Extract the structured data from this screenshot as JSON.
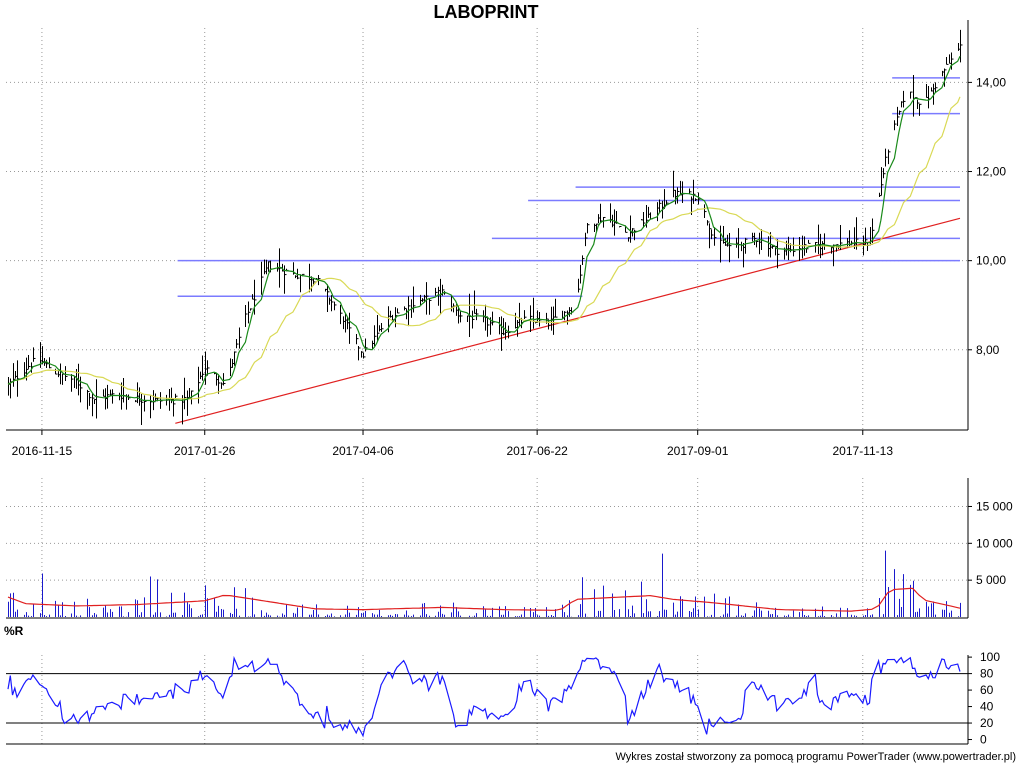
{
  "header": {
    "title": "LABOPRINT"
  },
  "footer": {
    "credit": "Wykres został stworzony za pomocą programu PowerTrader (www.powertrader.pl)"
  },
  "colors": {
    "sma_short": "#1a8a1a",
    "sma_long": "#d9d955",
    "trendline": "#e02020",
    "hlines": "#7b7bff",
    "volume_bars": "#1a1acc",
    "volume_avg": "#e02020",
    "wr_line": "#1a1aff",
    "grid": "#999999"
  },
  "chart_data": [
    {
      "type": "candlestick",
      "name": "price",
      "y_ticks": [
        "8,00",
        "10,00",
        "12,00",
        "14,00"
      ],
      "y_tick_values": [
        8,
        10,
        12,
        14
      ],
      "ylim": [
        6.2,
        15.4
      ],
      "x_date_labels": [
        "2016-11-15",
        "2017-01-26",
        "2017-04-06",
        "2017-06-22",
        "2017-09-01",
        "2017-11-13"
      ],
      "horizontal_levels": [
        {
          "from": "2017-01-14",
          "to": "2017-12-26",
          "value": 10.0
        },
        {
          "from": "2017-01-14",
          "to": "2017-07-12",
          "value": 9.2
        },
        {
          "from": "2017-06-02",
          "to": "2017-12-26",
          "value": 10.5
        },
        {
          "from": "2017-06-18",
          "to": "2017-12-26",
          "value": 11.35
        },
        {
          "from": "2017-07-09",
          "to": "2017-12-26",
          "value": 11.65
        },
        {
          "from": "2017-11-26",
          "to": "2017-12-26",
          "value": 13.3
        },
        {
          "from": "2017-11-26",
          "to": "2017-12-26",
          "value": 14.1
        }
      ],
      "trendline": {
        "from_date": "2017-01-13",
        "from_value": 6.35,
        "to_date": "2017-12-26",
        "to_value": 10.95
      },
      "close_anchors": [
        [
          "2016-10-31",
          7.2
        ],
        [
          "2016-11-08",
          7.6
        ],
        [
          "2016-11-13",
          7.8
        ],
        [
          "2016-11-21",
          7.5
        ],
        [
          "2016-11-30",
          7.3
        ],
        [
          "2016-12-08",
          6.9
        ],
        [
          "2016-12-18",
          7.0
        ],
        [
          "2016-12-28",
          6.9
        ],
        [
          "2017-01-08",
          6.85
        ],
        [
          "2017-01-19",
          6.9
        ],
        [
          "2017-01-26",
          7.6
        ],
        [
          "2017-02-04",
          7.2
        ],
        [
          "2017-02-12",
          8.6
        ],
        [
          "2017-02-23",
          9.9
        ],
        [
          "2017-03-06",
          9.7
        ],
        [
          "2017-03-16",
          9.6
        ],
        [
          "2017-03-28",
          8.7
        ],
        [
          "2017-04-06",
          7.9
        ],
        [
          "2017-04-17",
          8.7
        ],
        [
          "2017-04-27",
          9.0
        ],
        [
          "2017-05-11",
          9.3
        ],
        [
          "2017-05-18",
          8.8
        ],
        [
          "2017-05-28",
          8.7
        ],
        [
          "2017-06-07",
          8.4
        ],
        [
          "2017-06-17",
          8.7
        ],
        [
          "2017-06-27",
          8.6
        ],
        [
          "2017-07-09",
          9.0
        ],
        [
          "2017-07-14",
          10.8
        ],
        [
          "2017-07-22",
          11.0
        ],
        [
          "2017-08-01",
          10.6
        ],
        [
          "2017-08-11",
          11.0
        ],
        [
          "2017-08-21",
          11.5
        ],
        [
          "2017-09-01",
          11.45
        ],
        [
          "2017-09-09",
          10.4
        ],
        [
          "2017-09-17",
          10.3
        ],
        [
          "2017-09-27",
          10.5
        ],
        [
          "2017-10-07",
          10.2
        ],
        [
          "2017-10-17",
          10.3
        ],
        [
          "2017-10-27",
          10.35
        ],
        [
          "2017-11-08",
          10.4
        ],
        [
          "2017-11-16",
          10.4
        ],
        [
          "2017-11-24",
          12.5
        ],
        [
          "2017-12-02",
          13.8
        ],
        [
          "2017-12-10",
          13.5
        ],
        [
          "2017-12-18",
          14.2
        ],
        [
          "2017-12-26",
          14.8
        ]
      ]
    },
    {
      "type": "bar",
      "name": "volume",
      "y_ticks": [
        "5 000",
        "10 000",
        "15 000"
      ],
      "y_tick_values": [
        5000,
        10000,
        15000
      ],
      "ylim": [
        0,
        19000
      ],
      "spikes": [
        [
          "2016-11-15",
          5900
        ],
        [
          "2016-12-18",
          4000
        ],
        [
          "2017-01-02",
          5500
        ],
        [
          "2017-01-05",
          5100
        ],
        [
          "2017-01-26",
          4300
        ],
        [
          "2017-02-04",
          5000
        ],
        [
          "2017-07-08",
          10400
        ],
        [
          "2017-07-12",
          5400
        ],
        [
          "2017-08-05",
          10200
        ],
        [
          "2017-08-16",
          8600
        ],
        [
          "2017-11-23",
          9000
        ],
        [
          "2017-11-25",
          17600
        ],
        [
          "2017-11-27",
          6500
        ]
      ],
      "avg_anchors": [
        [
          "2016-10-31",
          2700
        ],
        [
          "2016-11-08",
          1800
        ],
        [
          "2016-11-30",
          1500
        ],
        [
          "2016-12-28",
          1700
        ],
        [
          "2017-01-26",
          2200
        ],
        [
          "2017-02-04",
          3000
        ],
        [
          "2017-02-23",
          2100
        ],
        [
          "2017-03-16",
          1100
        ],
        [
          "2017-04-06",
          1000
        ],
        [
          "2017-05-11",
          1300
        ],
        [
          "2017-06-07",
          1000
        ],
        [
          "2017-07-02",
          900
        ],
        [
          "2017-07-09",
          2400
        ],
        [
          "2017-08-11",
          2900
        ],
        [
          "2017-08-21",
          2400
        ],
        [
          "2017-09-09",
          1900
        ],
        [
          "2017-10-07",
          1000
        ],
        [
          "2017-11-08",
          800
        ],
        [
          "2017-11-19",
          1100
        ],
        [
          "2017-11-25",
          3700
        ],
        [
          "2017-12-05",
          3900
        ],
        [
          "2017-12-10",
          2300
        ],
        [
          "2017-12-26",
          1200
        ]
      ]
    },
    {
      "type": "line",
      "name": "williams-r",
      "label": "%R",
      "y_ticks": [
        "0",
        "20",
        "40",
        "60",
        "80",
        "100"
      ],
      "y_tick_values": [
        0,
        20,
        40,
        60,
        80,
        100
      ],
      "ylim": [
        -3,
        105
      ],
      "reference_levels": [
        20,
        80
      ]
    }
  ]
}
